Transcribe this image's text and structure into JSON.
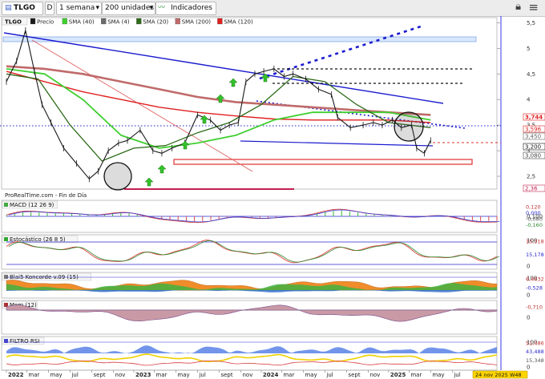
{
  "toolbar": {
    "symbol": "TLGO",
    "mode": "D",
    "period": "1 semana",
    "units": "200 unidades",
    "indicators_label": "Indicadores"
  },
  "colors": {
    "price": "#1a1a1a",
    "sma4": "#6b6b6b",
    "sma20": "#2f6b1a",
    "sma40": "#3fcf2e",
    "sma120": "#e02020",
    "sma200": "#c06a6a",
    "trend": "#1c1cd0",
    "channel": "#e03030",
    "support": "#c22050"
  },
  "main_legend": [
    {
      "name": "Precio",
      "color": "#1a1a1a"
    },
    {
      "name": "SMA (40)",
      "color": "#3fcf2e"
    },
    {
      "name": "SMA (4)",
      "color": "#6b6b6b"
    },
    {
      "name": "SMA (20)",
      "color": "#2f6b1a"
    },
    {
      "name": "SMA (200)",
      "color": "#c06a6a"
    },
    {
      "name": "SMA (120)",
      "color": "#e02020"
    }
  ],
  "watermark": "ProRealTime.com - Fin de Día",
  "chart_data": [
    {
      "type": "line",
      "title": "TLGO",
      "x_ticks": [
        "2022",
        "mar",
        "may",
        "jul",
        "sept",
        "nov",
        "2023",
        "mar",
        "may",
        "jul",
        "sept",
        "nov",
        "2024",
        "mar",
        "may",
        "jul",
        "sept",
        "nov",
        "2025",
        "mar",
        "may",
        "jul",
        "sep"
      ],
      "ylim": [
        2.25,
        5.6
      ],
      "y_ticks": [
        "5,5",
        "5",
        "4,5",
        "4",
        "3,5",
        "3",
        "2,5"
      ],
      "series": [
        {
          "name": "Precio",
          "x": [
            2022.0,
            2022.08,
            2022.15,
            2022.22,
            2022.28,
            2022.35,
            2022.45,
            2022.55,
            2022.65,
            2022.72,
            2022.8,
            2022.88,
            2022.95,
            2023.05,
            2023.15,
            2023.22,
            2023.3,
            2023.4,
            2023.5,
            2023.6,
            2023.68,
            2023.75,
            2023.82,
            2023.88,
            2023.95,
            2024.02,
            2024.1,
            2024.18,
            2024.25,
            2024.35,
            2024.45,
            2024.55,
            2024.6,
            2024.7,
            2024.8,
            2024.88,
            2024.95,
            2025.03,
            2025.1,
            2025.18,
            2025.22,
            2025.28,
            2025.33
          ],
          "values": [
            4.35,
            4.75,
            5.35,
            4.55,
            3.9,
            3.55,
            3.05,
            2.75,
            2.45,
            2.6,
            3.0,
            3.15,
            3.2,
            3.4,
            3.0,
            2.95,
            3.05,
            3.15,
            3.7,
            3.6,
            3.4,
            3.5,
            3.55,
            4.35,
            4.5,
            4.55,
            4.6,
            4.45,
            4.5,
            4.4,
            4.2,
            4.1,
            3.65,
            3.45,
            3.5,
            3.55,
            3.5,
            3.6,
            3.45,
            3.5,
            3.05,
            2.95,
            3.2
          ]
        },
        {
          "name": "SMA (120)",
          "x": [
            2022.0,
            2022.3,
            2022.6,
            2022.9,
            2023.2,
            2023.5,
            2023.8,
            2024.1,
            2024.4,
            2024.7,
            2025.0,
            2025.33
          ],
          "values": [
            4.55,
            4.35,
            4.15,
            4.0,
            3.85,
            3.75,
            3.68,
            3.62,
            3.6,
            3.6,
            3.6,
            3.55
          ]
        },
        {
          "name": "SMA (200)",
          "x": [
            2022.0,
            2022.3,
            2022.6,
            2022.9,
            2023.2,
            2023.5,
            2023.8,
            2024.1,
            2024.4,
            2024.7,
            2025.0,
            2025.33
          ],
          "values": [
            4.65,
            4.6,
            4.5,
            4.35,
            4.2,
            4.05,
            3.95,
            3.9,
            3.85,
            3.8,
            3.75,
            3.7
          ]
        },
        {
          "name": "SMA (40)",
          "x": [
            2022.0,
            2022.3,
            2022.6,
            2022.9,
            2023.2,
            2023.5,
            2023.8,
            2024.1,
            2024.4,
            2024.7,
            2025.0,
            2025.33
          ],
          "values": [
            4.6,
            4.5,
            4.0,
            3.3,
            3.05,
            3.15,
            3.3,
            3.6,
            3.75,
            3.75,
            3.75,
            3.6
          ]
        },
        {
          "name": "SMA (20)",
          "x": [
            2022.0,
            2022.25,
            2022.5,
            2022.75,
            2023.0,
            2023.25,
            2023.5,
            2023.75,
            2024.0,
            2024.25,
            2024.5,
            2024.75,
            2025.0,
            2025.33
          ],
          "values": [
            4.5,
            4.4,
            3.5,
            2.8,
            3.05,
            3.1,
            3.35,
            3.55,
            3.9,
            4.45,
            4.35,
            3.9,
            3.55,
            3.45
          ]
        }
      ],
      "price_labels": [
        {
          "value": "3,744",
          "color": "#e02020"
        },
        {
          "value": "3,596",
          "color": "#e02020"
        },
        {
          "value": "3,450",
          "color": "#666666"
        },
        {
          "value": "3,200",
          "color": "#111111"
        },
        {
          "value": "3,080",
          "color": "#444444"
        },
        {
          "value": "2,36",
          "color": "#c22050"
        }
      ]
    },
    {
      "type": "line",
      "title": "MACD (12 26 9)",
      "ylim": [
        -0.17,
        0.12
      ],
      "y_ticks": [
        "0,100"
      ],
      "value_labels": [
        "0,120",
        "0,000",
        "-0,080",
        "-0,160"
      ]
    },
    {
      "type": "line",
      "title": "Estocástico (26 8 5)",
      "ylim": [
        0,
        100
      ],
      "y_ticks": [
        "100",
        "0"
      ],
      "value_labels": [
        "15,318",
        "15,178"
      ]
    },
    {
      "type": "area",
      "title": "Blai5 Koncorde v.09 (15)",
      "ylim": [
        -20,
        100
      ],
      "y_ticks": [
        "100",
        "0"
      ],
      "value_labels": [
        "6,4632",
        "-0,528"
      ]
    },
    {
      "type": "area",
      "title": "Mom (12)",
      "ylim": [
        -1.0,
        0.4
      ],
      "y_ticks": [
        "0"
      ],
      "value_labels": [
        "-0,710"
      ]
    },
    {
      "type": "area",
      "title": "FILTRO RSI",
      "ylim": [
        0,
        100
      ],
      "y_ticks": [
        "100",
        "0"
      ],
      "value_labels": [
        "51,486",
        "43,488",
        "15,348"
      ]
    }
  ],
  "date_flag": "24 nov 2025 W48"
}
